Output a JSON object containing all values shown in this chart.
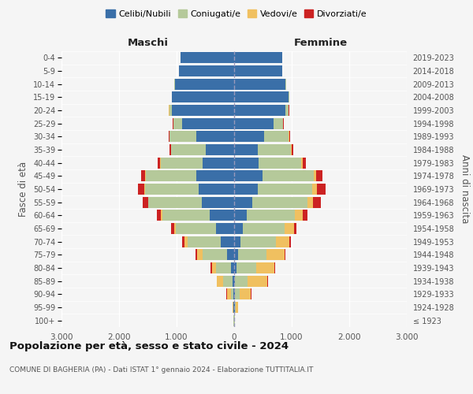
{
  "age_groups": [
    "100+",
    "95-99",
    "90-94",
    "85-89",
    "80-84",
    "75-79",
    "70-74",
    "65-69",
    "60-64",
    "55-59",
    "50-54",
    "45-49",
    "40-44",
    "35-39",
    "30-34",
    "25-29",
    "20-24",
    "15-19",
    "10-14",
    "5-9",
    "0-4"
  ],
  "birth_years": [
    "≤ 1923",
    "1924-1928",
    "1929-1933",
    "1934-1938",
    "1939-1943",
    "1944-1948",
    "1949-1953",
    "1954-1958",
    "1959-1963",
    "1964-1968",
    "1969-1973",
    "1974-1978",
    "1979-1983",
    "1984-1988",
    "1989-1993",
    "1994-1998",
    "1999-2003",
    "2004-2008",
    "2009-2013",
    "2014-2018",
    "2019-2023"
  ],
  "colors": {
    "celibe": "#3a6fa8",
    "coniugato": "#b5c99a",
    "vedovo": "#f0c060",
    "divorziato": "#cc2222"
  },
  "maschi": {
    "celibe": [
      5,
      8,
      15,
      25,
      60,
      120,
      230,
      310,
      420,
      560,
      620,
      660,
      550,
      490,
      660,
      900,
      1080,
      1080,
      1030,
      960,
      930
    ],
    "coniugato": [
      4,
      8,
      45,
      160,
      260,
      430,
      580,
      700,
      830,
      930,
      930,
      880,
      730,
      600,
      460,
      150,
      50,
      8,
      8,
      0,
      0
    ],
    "vedovo": [
      4,
      15,
      70,
      110,
      70,
      90,
      55,
      35,
      18,
      8,
      8,
      8,
      4,
      4,
      4,
      4,
      4,
      0,
      0,
      0,
      0
    ],
    "divorziato": [
      0,
      0,
      4,
      8,
      22,
      28,
      45,
      55,
      75,
      95,
      115,
      75,
      38,
      28,
      18,
      8,
      4,
      0,
      0,
      0,
      0
    ]
  },
  "femmine": {
    "nubile": [
      4,
      8,
      12,
      18,
      45,
      70,
      110,
      150,
      220,
      320,
      410,
      490,
      430,
      410,
      520,
      690,
      890,
      940,
      890,
      840,
      840
    ],
    "coniugata": [
      4,
      15,
      90,
      220,
      340,
      490,
      610,
      720,
      840,
      950,
      950,
      890,
      730,
      570,
      430,
      155,
      55,
      18,
      8,
      0,
      0
    ],
    "vedova": [
      8,
      45,
      190,
      340,
      310,
      310,
      240,
      170,
      130,
      105,
      75,
      45,
      28,
      18,
      8,
      8,
      4,
      0,
      0,
      0,
      0
    ],
    "divorziata": [
      0,
      0,
      4,
      8,
      18,
      18,
      28,
      45,
      85,
      125,
      155,
      105,
      55,
      28,
      18,
      8,
      4,
      0,
      0,
      0,
      0
    ]
  },
  "xlim": 3000,
  "title": "Popolazione per età, sesso e stato civile - 2024",
  "subtitle": "COMUNE DI BAGHERIA (PA) - Dati ISTAT 1° gennaio 2024 - Elaborazione TUTTITALIA.IT",
  "ylabel_left": "Fasce di età",
  "ylabel_right": "Anni di nascita",
  "xlabel_left": "Maschi",
  "xlabel_right": "Femmine",
  "bg_color": "#f5f5f5"
}
